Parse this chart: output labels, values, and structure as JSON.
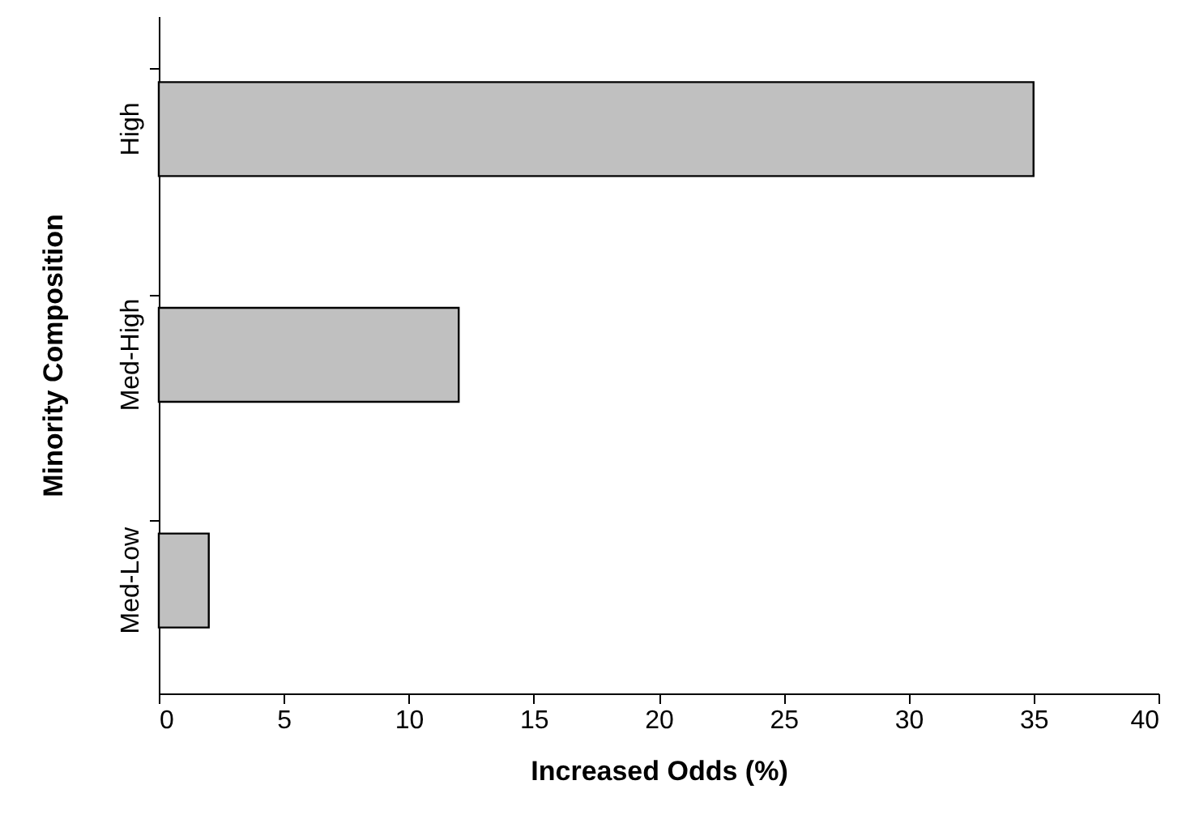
{
  "chart_data": {
    "type": "bar",
    "orientation": "horizontal",
    "xlabel": "Increased Odds (%)",
    "ylabel": "Minority Composition",
    "categories": [
      "High",
      "Med-High",
      "Med-Low"
    ],
    "values": [
      35,
      12,
      2
    ],
    "color": "#c0c0c0",
    "xlim": [
      0,
      40
    ],
    "xticks": [
      0,
      5,
      10,
      15,
      20,
      25,
      30,
      35,
      40
    ],
    "grid": false
  }
}
